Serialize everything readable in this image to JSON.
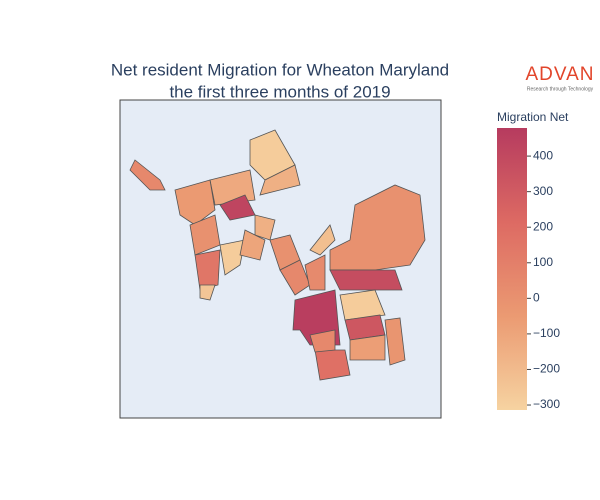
{
  "chart_data": {
    "type": "choropleth",
    "title": [
      "Net resident Migration for Wheaton Maryland",
      "the first three months of 2019"
    ],
    "colorbar_title": "Migration Net",
    "colorscale": [
      "#f6d3a1",
      "#eb9a72",
      "#dd6a63",
      "#b63b5f"
    ],
    "zlim": [
      -314,
      479
    ],
    "zticks": [
      {
        "value": -300,
        "label": "−300"
      },
      {
        "value": -200,
        "label": "−200"
      },
      {
        "value": -100,
        "label": "−100"
      },
      0,
      100,
      200,
      300,
      400
    ],
    "values": [
      50,
      -280,
      -150,
      -120,
      420,
      -50,
      0,
      150,
      -280,
      -250,
      -150,
      -100,
      0,
      50,
      -220,
      40,
      0,
      380,
      460,
      -280,
      320,
      -20,
      -70,
      180,
      50
    ],
    "logo": {
      "name": "ADVAN",
      "tagline": "Research through Technology"
    }
  }
}
